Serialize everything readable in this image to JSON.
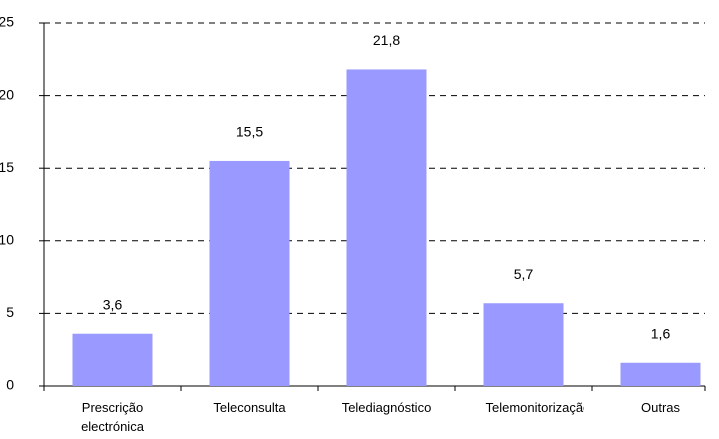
{
  "chart_data": {
    "type": "bar",
    "categories": [
      "Prescrição electrónica",
      "Teleconsulta",
      "Telediagnóstico",
      "Telemonitorização",
      "Outras"
    ],
    "values": [
      3.6,
      15.5,
      21.8,
      5.7,
      1.6
    ],
    "value_labels": [
      "3,6",
      "15,5",
      "21,8",
      "5,7",
      "1,6"
    ],
    "color": "#9999ff",
    "ylim": [
      0,
      25
    ],
    "yticks": [
      0,
      5,
      10,
      15,
      20,
      25
    ],
    "grid": true
  }
}
